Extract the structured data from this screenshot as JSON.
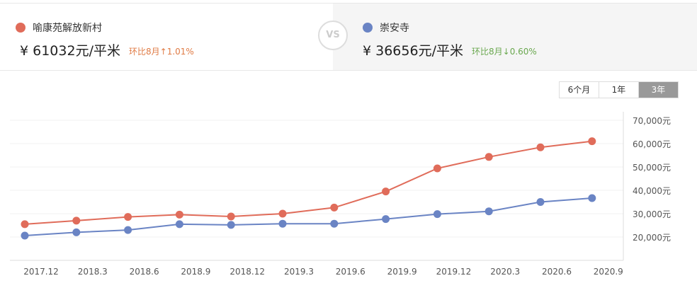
{
  "compare": {
    "left": {
      "name": "喻康苑解放新村",
      "price": "¥ 61032元/平米",
      "change": "环比8月↑1.01%",
      "color": "#e06c5a",
      "change_color": "#e07b45"
    },
    "vs_label": "VS",
    "right": {
      "name": "崇安寺",
      "price": "¥ 36656元/平米",
      "change": "环比8月↓0.60%",
      "color": "#6a84c4",
      "change_color": "#6aa84f"
    }
  },
  "range_buttons": [
    {
      "label": "6个月"
    },
    {
      "label": "1年"
    },
    {
      "label": "3年",
      "selected": true
    }
  ],
  "chart_data": {
    "type": "line",
    "categories": [
      "2017.12",
      "2018.3",
      "2018.6",
      "2018.9",
      "2018.12",
      "2019.3",
      "2019.6",
      "2019.9",
      "2019.12",
      "2020.3",
      "2020.6",
      "2020.9"
    ],
    "yticks": [
      "20,000元",
      "30,000元",
      "40,000元",
      "50,000元",
      "60,000元",
      "70,000元"
    ],
    "ylim": [
      10000,
      71000
    ],
    "grid": true,
    "series": [
      {
        "name": "喻康苑解放新村",
        "color": "#e06c5a",
        "values": [
          25500,
          27000,
          28600,
          29600,
          28800,
          30000,
          32600,
          39500,
          49400,
          54300,
          58400,
          61032
        ]
      },
      {
        "name": "崇安寺",
        "color": "#6a84c4",
        "values": [
          20600,
          22000,
          23000,
          25500,
          25200,
          25700,
          25700,
          27700,
          29800,
          31000,
          35000,
          36656
        ]
      }
    ]
  }
}
